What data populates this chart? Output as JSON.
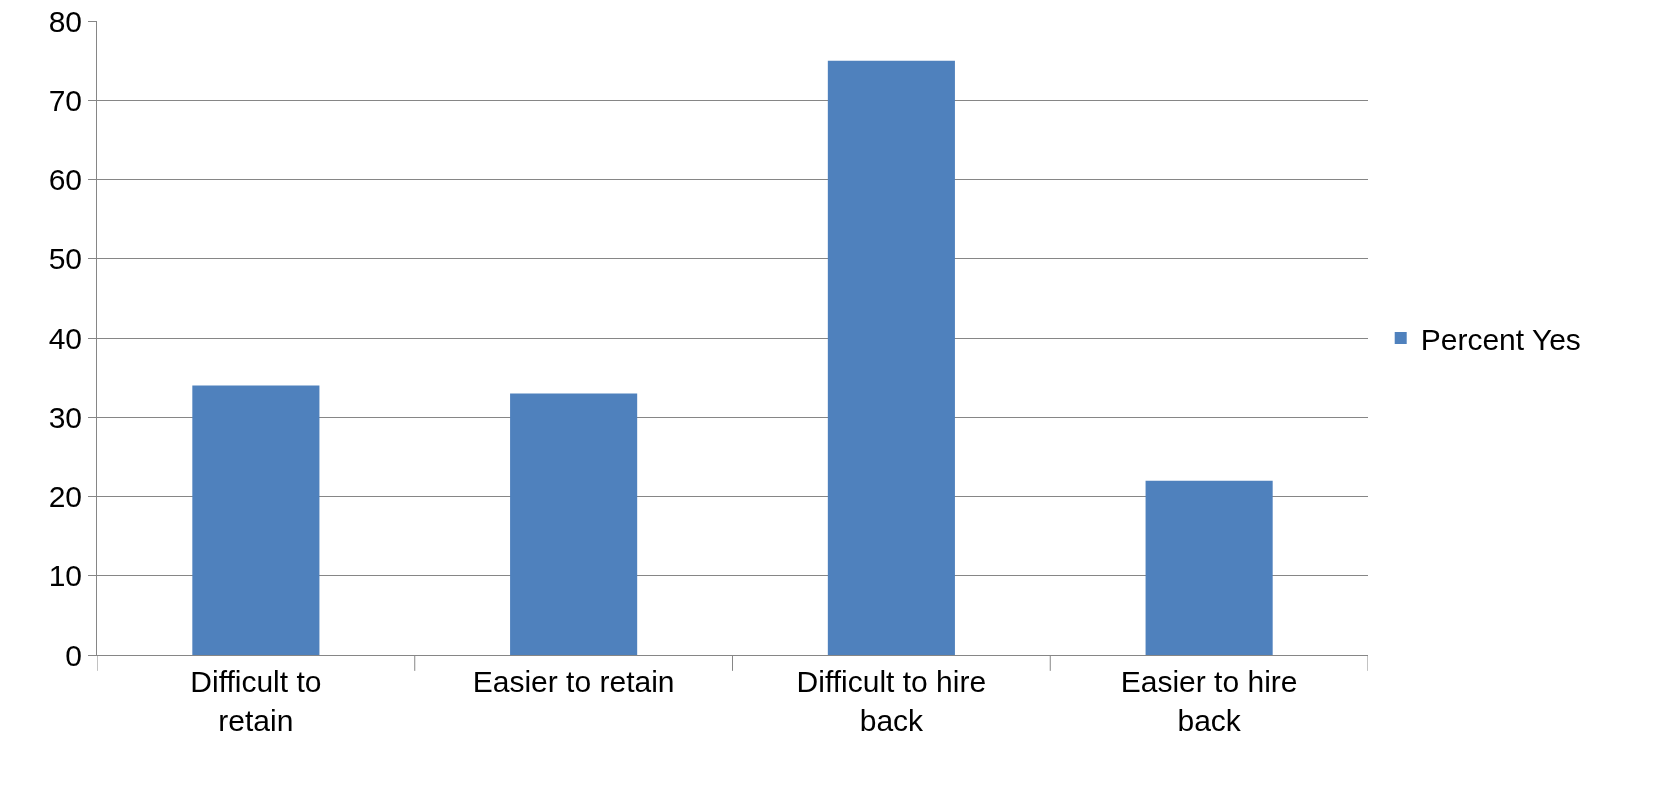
{
  "chart_data": {
    "type": "bar",
    "categories": [
      "Difficult to retain",
      "Easier to retain",
      "Difficult to hire back",
      "Easier to hire back"
    ],
    "series": [
      {
        "name": "Percent Yes",
        "color": "#4f81bd",
        "values": [
          34,
          33,
          75,
          22
        ]
      }
    ],
    "ylim": [
      0,
      80
    ],
    "yticks": [
      0,
      10,
      20,
      30,
      40,
      50,
      60,
      70,
      80
    ],
    "grid": "y",
    "legend": "right"
  }
}
